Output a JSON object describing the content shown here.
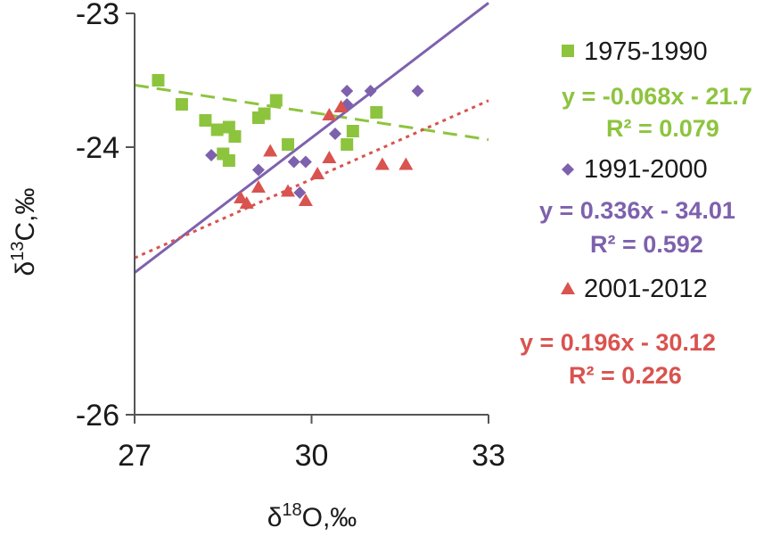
{
  "chart_data": {
    "type": "scatter",
    "title": "",
    "xlabel": {
      "prefix": "δ",
      "sup": "18",
      "suffix": "O,‰"
    },
    "ylabel": {
      "prefix": "δ",
      "sup": "13",
      "suffix": "C,‰"
    },
    "xlim": [
      27,
      33
    ],
    "ylim": [
      -26,
      -23
    ],
    "x_ticks": [
      "27",
      "30",
      "33"
    ],
    "y_ticks": [
      "-23",
      "-24",
      "-26"
    ],
    "grid": false,
    "legend_position": "right",
    "series": [
      {
        "name": "1975-1990",
        "marker": "square",
        "color": "#8dc43e",
        "trend_style": "dashed",
        "equation": "y = -0.068x - 21.7",
        "r2": "R² = 0.079",
        "trend": {
          "slope": -0.068,
          "intercept": -21.7
        },
        "points": [
          [
            27.4,
            -23.5
          ],
          [
            27.8,
            -23.68
          ],
          [
            28.2,
            -23.8
          ],
          [
            28.4,
            -23.87
          ],
          [
            28.6,
            -23.85
          ],
          [
            28.7,
            -23.92
          ],
          [
            28.5,
            -24.05
          ],
          [
            28.6,
            -24.1
          ],
          [
            29.1,
            -23.78
          ],
          [
            29.2,
            -23.75
          ],
          [
            29.4,
            -23.65
          ],
          [
            29.6,
            -23.98
          ],
          [
            30.6,
            -23.98
          ],
          [
            30.7,
            -23.88
          ],
          [
            31.1,
            -23.74
          ]
        ]
      },
      {
        "name": "1991-2000",
        "marker": "diamond",
        "color": "#7e61ad",
        "trend_style": "solid",
        "equation": "y = 0.336x - 34.01",
        "r2": "R² = 0.592",
        "trend": {
          "slope": 0.336,
          "intercept": -34.01
        },
        "points": [
          [
            28.3,
            -24.06
          ],
          [
            29.1,
            -24.17
          ],
          [
            29.7,
            -24.11
          ],
          [
            29.9,
            -24.11
          ],
          [
            29.8,
            -24.34
          ],
          [
            30.4,
            -23.9
          ],
          [
            30.6,
            -23.68
          ],
          [
            30.6,
            -23.58
          ],
          [
            31.0,
            -23.58
          ],
          [
            31.8,
            -23.58
          ]
        ]
      },
      {
        "name": "2001-2012",
        "marker": "triangle",
        "color": "#d9534f",
        "trend_style": "dotted",
        "equation": "y = 0.196x - 30.12",
        "r2": "R² = 0.226",
        "trend": {
          "slope": 0.196,
          "intercept": -30.12
        },
        "points": [
          [
            28.8,
            -24.38
          ],
          [
            28.9,
            -24.42
          ],
          [
            29.1,
            -24.3
          ],
          [
            29.3,
            -24.03
          ],
          [
            29.6,
            -24.33
          ],
          [
            29.9,
            -24.4
          ],
          [
            30.1,
            -24.2
          ],
          [
            30.3,
            -24.08
          ],
          [
            30.3,
            -23.76
          ],
          [
            30.5,
            -23.7
          ],
          [
            31.2,
            -24.13
          ],
          [
            31.6,
            -24.13
          ]
        ]
      }
    ]
  }
}
